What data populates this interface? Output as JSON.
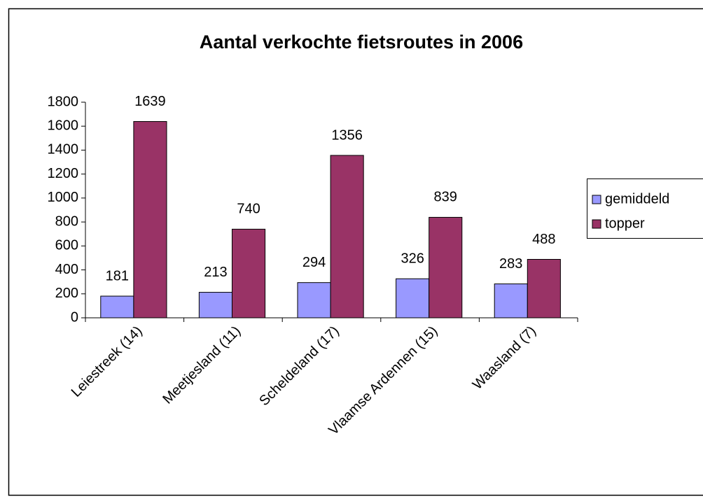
{
  "chart_data": {
    "type": "bar",
    "title": "Aantal verkochte fietsroutes in 2006",
    "categories": [
      "Leiestreek (14)",
      "Meetjesland (11)",
      "Scheldeland (17)",
      "Vlaamse Ardennen (15)",
      "Waasland (7)"
    ],
    "series": [
      {
        "name": "gemiddeld",
        "color": "#9999ff",
        "values": [
          181,
          213,
          294,
          326,
          283
        ]
      },
      {
        "name": "topper",
        "color": "#993366",
        "values": [
          1639,
          740,
          1356,
          839,
          488
        ]
      }
    ],
    "ylim": [
      0,
      1800
    ],
    "yticks": [
      0,
      200,
      400,
      600,
      800,
      1000,
      1200,
      1400,
      1600,
      1800
    ],
    "legend": "right"
  }
}
